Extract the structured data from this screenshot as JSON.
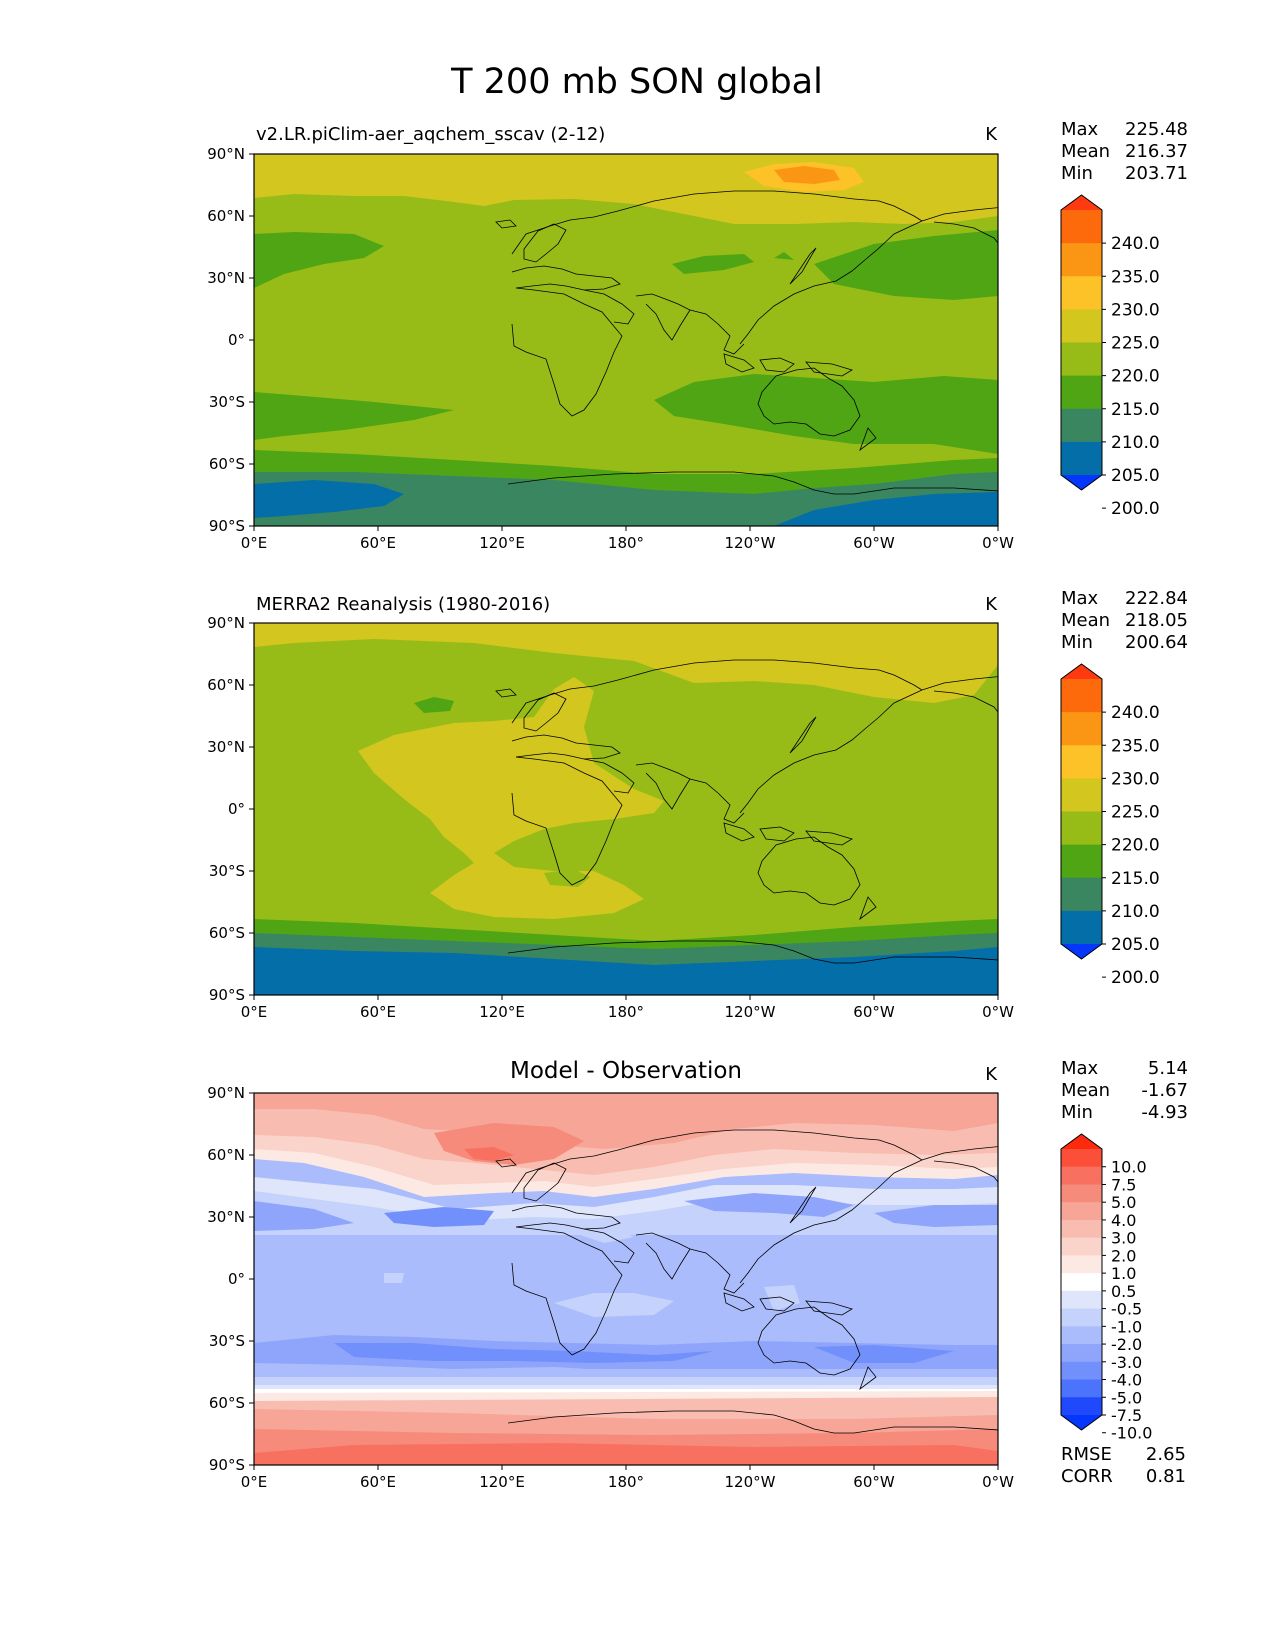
{
  "title": "T 200 mb SON global",
  "x_ticks": [
    "0°E",
    "60°E",
    "120°E",
    "180°",
    "120°W",
    "60°W",
    "0°W"
  ],
  "y_ticks": [
    "90°N",
    "60°N",
    "30°N",
    "0°",
    "30°S",
    "60°S",
    "90°S"
  ],
  "panels": [
    {
      "id": "model",
      "title": "v2.LR.piClim-aer_aqchem_sscav (2-12)",
      "units": "K",
      "stats": [
        {
          "label": "Max",
          "value": "225.48"
        },
        {
          "label": "Mean",
          "value": "216.37"
        },
        {
          "label": "Min",
          "value": "203.71"
        }
      ],
      "colorbar": {
        "labels": [
          "240.0",
          "235.0",
          "230.0",
          "225.0",
          "220.0",
          "215.0",
          "210.0",
          "205.0",
          "200.0"
        ],
        "colors": [
          "#fe3a10",
          "#fc6a0c",
          "#fb9614",
          "#fcc228",
          "#d3c61f",
          "#97bc18",
          "#4fa514",
          "#3a8660",
          "#046ea8",
          "#0436fc"
        ]
      }
    },
    {
      "id": "obs",
      "title": "MERRA2 Reanalysis (1980-2016)",
      "units": "K",
      "stats": [
        {
          "label": "Max",
          "value": "222.84"
        },
        {
          "label": "Mean",
          "value": "218.05"
        },
        {
          "label": "Min",
          "value": "200.64"
        }
      ],
      "colorbar": {
        "labels": [
          "240.0",
          "235.0",
          "230.0",
          "225.0",
          "220.0",
          "215.0",
          "210.0",
          "205.0",
          "200.0"
        ],
        "colors": [
          "#fe3a10",
          "#fc6a0c",
          "#fb9614",
          "#fcc228",
          "#d3c61f",
          "#97bc18",
          "#4fa514",
          "#3a8660",
          "#046ea8",
          "#0436fc"
        ]
      }
    },
    {
      "id": "diff",
      "title": "Model - Observation",
      "units": "K",
      "stats": [
        {
          "label": "Max",
          "value": "5.14"
        },
        {
          "label": "Mean",
          "value": "-1.67"
        },
        {
          "label": "Min",
          "value": "-4.93"
        }
      ],
      "extra_stats": [
        {
          "label": "RMSE",
          "value": "2.65"
        },
        {
          "label": "CORR",
          "value": "0.81"
        }
      ],
      "colorbar": {
        "labels": [
          "10.0",
          "7.5",
          "5.0",
          "4.0",
          "3.0",
          "2.0",
          "1.0",
          "0.5",
          "-0.5",
          "-1.0",
          "-2.0",
          "-3.0",
          "-4.0",
          "-5.0",
          "-7.5",
          "-10.0"
        ],
        "colors": [
          "#fd2a0e",
          "#fb4f3a",
          "#f87060",
          "#f68b7b",
          "#f6a596",
          "#f8bdb0",
          "#fad4ca",
          "#fde9e4",
          "#ffffff",
          "#dfe6fb",
          "#c5d2fb",
          "#aabcfb",
          "#8ea5fb",
          "#7290fb",
          "#4b73fc",
          "#2049fc",
          "#0436fc"
        ]
      }
    }
  ],
  "colors": {
    "land_outline": "#000000",
    "axis": "#000000"
  }
}
